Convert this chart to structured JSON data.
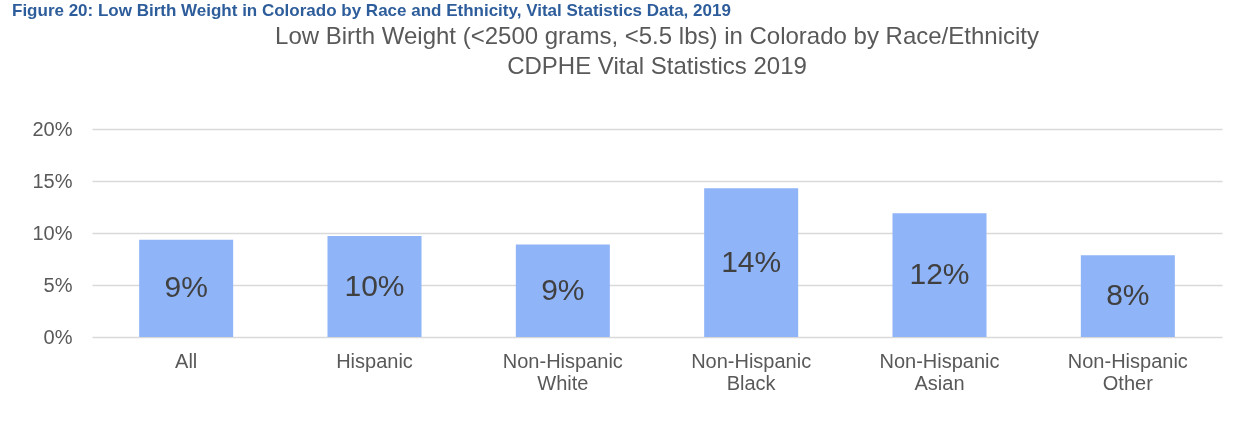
{
  "chart_data": {
    "type": "bar",
    "title": "Low Birth Weight (<2500 grams, <5.5 lbs) in Colorado by Race/Ethnicity",
    "subtitle": "CDPHE Vital Statistics 2019",
    "annotations": [
      "Figure 20: Low Birth Weight in Colorado by Race and Ethnicity, Vital Statistics Data, 2019"
    ],
    "categories": [
      "All",
      "Hispanic",
      "Non-Hispanic White",
      "Non-Hispanic Black",
      "Non-Hispanic Asian",
      "Non-Hispanic Other"
    ],
    "values": [
      9.35,
      9.7,
      8.9,
      14.3,
      11.9,
      7.85
    ],
    "value_labels": [
      "9%",
      "10%",
      "9%",
      "14%",
      "12%",
      "8%"
    ],
    "color": "#8fb4f8",
    "ylim": [
      0,
      20
    ],
    "yticks": [
      {
        "value": 0,
        "label": "0%"
      },
      {
        "value": 5,
        "label": "5%"
      },
      {
        "value": 10,
        "label": "10%"
      },
      {
        "value": 15,
        "label": "15%"
      },
      {
        "value": 20,
        "label": "20%"
      }
    ],
    "grid": "y",
    "legend": false
  }
}
